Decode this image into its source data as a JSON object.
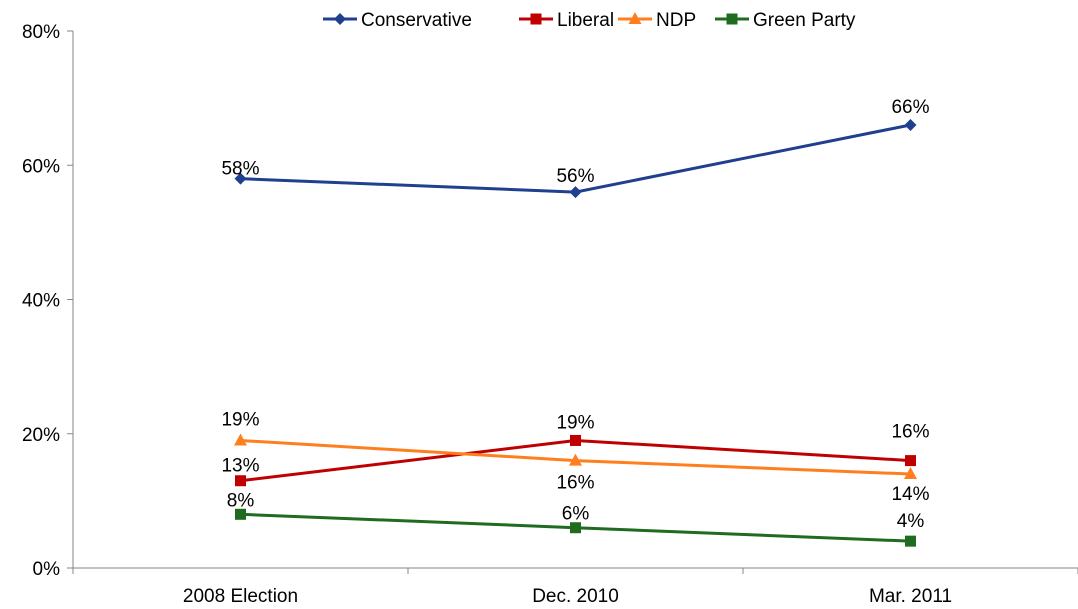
{
  "chart_data": {
    "type": "line",
    "categories": [
      "2008 Election",
      "Dec. 2010",
      "Mar. 2011"
    ],
    "ylim": [
      0,
      80
    ],
    "yticks": [
      "0%",
      "20%",
      "40%",
      "60%",
      "80%"
    ],
    "ytick_values": [
      0,
      20,
      40,
      60,
      80
    ],
    "grid": false,
    "legend_position": "top",
    "series": [
      {
        "name": "Conservative",
        "values": [
          58,
          56,
          66
        ],
        "labels": [
          "58%",
          "56%",
          "66%"
        ],
        "color": "#1F3F8F",
        "marker": "diamond"
      },
      {
        "name": "Liberal",
        "values": [
          13,
          19,
          16
        ],
        "labels": [
          "13%",
          "19%",
          "16%"
        ],
        "color": "#C00000",
        "marker": "square"
      },
      {
        "name": "NDP",
        "values": [
          19,
          16,
          14
        ],
        "labels": [
          "19%",
          "16%",
          "14%"
        ],
        "color": "#FF7F1F",
        "marker": "triangle"
      },
      {
        "name": "Green Party",
        "values": [
          8,
          6,
          4
        ],
        "labels": [
          "8%",
          "6%",
          "4%"
        ],
        "color": "#1F6B1F",
        "marker": "square"
      }
    ]
  }
}
